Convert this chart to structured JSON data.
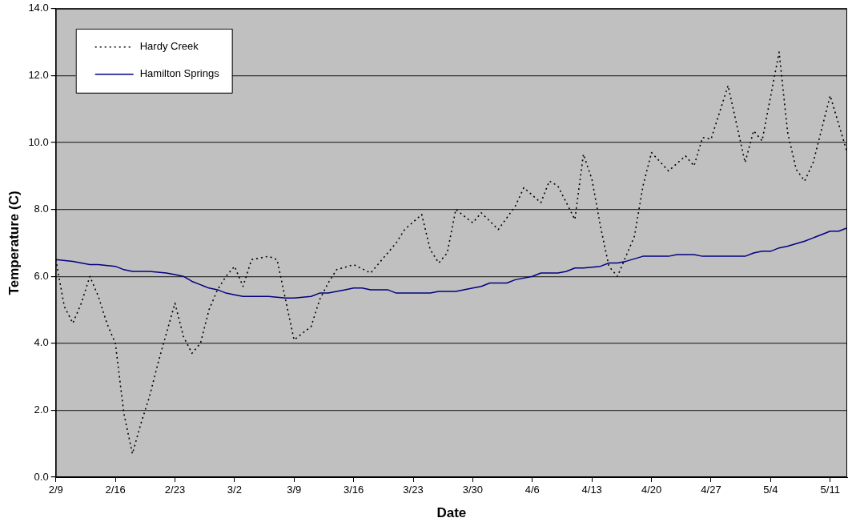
{
  "chart_data": {
    "type": "line",
    "xlabel": "Date",
    "ylabel": "Temperature (C)",
    "xlim": [
      "--02-09",
      "--05-13"
    ],
    "xticks": [
      {
        "value": "--02-09",
        "label": "2/9"
      },
      {
        "value": "--02-16",
        "label": "2/16"
      },
      {
        "value": "--02-23",
        "label": "2/23"
      },
      {
        "value": "--03-02",
        "label": "3/2"
      },
      {
        "value": "--03-09",
        "label": "3/9"
      },
      {
        "value": "--03-16",
        "label": "3/16"
      },
      {
        "value": "--03-23",
        "label": "3/23"
      },
      {
        "value": "--03-30",
        "label": "3/30"
      },
      {
        "value": "--04-06",
        "label": "4/6"
      },
      {
        "value": "--04-13",
        "label": "4/13"
      },
      {
        "value": "--04-20",
        "label": "4/20"
      },
      {
        "value": "--04-27",
        "label": "4/27"
      },
      {
        "value": "--05-04",
        "label": "5/4"
      },
      {
        "value": "--05-11",
        "label": "5/11"
      }
    ],
    "ylim": [
      0,
      14
    ],
    "yticks": [
      {
        "value": 0,
        "label": "0.0"
      },
      {
        "value": 2,
        "label": "2.0"
      },
      {
        "value": 4,
        "label": "4.0"
      },
      {
        "value": 6,
        "label": "6.0"
      },
      {
        "value": 8,
        "label": "8.0"
      },
      {
        "value": 10,
        "label": "10.0"
      },
      {
        "value": 12,
        "label": "12.0"
      },
      {
        "value": 14,
        "label": "14.0"
      }
    ],
    "grid": "y",
    "legend": "top left",
    "marker": "none",
    "series": [
      {
        "name": "Hardy Creek",
        "color": "#000000",
        "line_style": "dotted",
        "x": [
          "--02-09",
          "--02-10",
          "--02-11",
          "--02-12",
          "--02-13",
          "--02-14",
          "--02-15",
          "--02-16",
          "--02-17",
          "--02-18",
          "--02-19",
          "--02-20",
          "--02-21",
          "--02-22",
          "--02-23",
          "--02-24",
          "--02-25",
          "--02-26",
          "--02-27",
          "--02-28",
          "--03-01",
          "--03-02",
          "--03-03",
          "--03-04",
          "--03-05",
          "--03-06",
          "--03-07",
          "--03-08",
          "--03-09",
          "--03-10",
          "--03-11",
          "--03-12",
          "--03-13",
          "--03-14",
          "--03-16",
          "--03-18",
          "--03-19",
          "--03-21",
          "--03-22",
          "--03-24",
          "--03-25",
          "--03-26",
          "--03-27",
          "--03-28",
          "--03-30",
          "--03-31",
          "--04-02",
          "--04-04",
          "--04-05",
          "--04-07",
          "--04-08",
          "--04-09",
          "--04-11",
          "--04-12",
          "--04-13",
          "--04-14",
          "--04-15",
          "--04-16",
          "--04-18",
          "--04-19",
          "--04-20",
          "--04-22",
          "--04-24",
          "--04-25",
          "--04-26",
          "--04-27",
          "--04-29",
          "--05-01",
          "--05-02",
          "--05-03",
          "--05-05",
          "--05-06",
          "--05-07",
          "--05-08",
          "--05-09",
          "--05-11",
          "--05-13"
        ],
        "values": [
          6.5,
          5.1,
          4.6,
          5.2,
          6.0,
          5.4,
          4.6,
          4.0,
          1.9,
          0.7,
          1.6,
          2.4,
          3.4,
          4.3,
          5.2,
          4.2,
          3.7,
          4.0,
          5.0,
          5.6,
          6.0,
          6.3,
          5.7,
          6.5,
          6.55,
          6.6,
          6.5,
          5.3,
          4.1,
          4.3,
          4.5,
          5.3,
          5.8,
          6.2,
          6.35,
          6.1,
          6.4,
          7.0,
          7.4,
          7.85,
          6.8,
          6.4,
          6.7,
          8.0,
          7.6,
          7.9,
          7.4,
          8.1,
          8.65,
          8.2,
          8.85,
          8.7,
          7.7,
          9.65,
          8.9,
          7.5,
          6.3,
          6.0,
          7.2,
          8.7,
          9.7,
          9.15,
          9.6,
          9.3,
          10.15,
          10.1,
          11.7,
          9.4,
          10.35,
          10.05,
          12.7,
          10.3,
          9.2,
          8.85,
          9.4,
          11.4,
          9.7
        ]
      },
      {
        "name": "Hamilton Springs",
        "color": "#000080",
        "line_style": "solid",
        "x": [
          "--02-09",
          "--02-11",
          "--02-12",
          "--02-13",
          "--02-14",
          "--02-16",
          "--02-17",
          "--02-18",
          "--02-20",
          "--02-22",
          "--02-23",
          "--02-24",
          "--02-25",
          "--02-26",
          "--02-27",
          "--02-28",
          "--03-01",
          "--03-02",
          "--03-03",
          "--03-06",
          "--03-08",
          "--03-09",
          "--03-11",
          "--03-12",
          "--03-13",
          "--03-15",
          "--03-16",
          "--03-17",
          "--03-18",
          "--03-20",
          "--03-21",
          "--03-22",
          "--03-23",
          "--03-25",
          "--03-26",
          "--03-28",
          "--03-30",
          "--03-31",
          "--04-01",
          "--04-03",
          "--04-04",
          "--04-06",
          "--04-07",
          "--04-09",
          "--04-10",
          "--04-11",
          "--04-12",
          "--04-14",
          "--04-15",
          "--04-16",
          "--04-17",
          "--04-19",
          "--04-22",
          "--04-23",
          "--04-25",
          "--04-26",
          "--04-30",
          "--05-01",
          "--05-02",
          "--05-03",
          "--05-04",
          "--05-05",
          "--05-06",
          "--05-08",
          "--05-09",
          "--05-10",
          "--05-11",
          "--05-12",
          "--05-13"
        ],
        "values": [
          6.5,
          6.45,
          6.4,
          6.35,
          6.35,
          6.3,
          6.2,
          6.15,
          6.15,
          6.1,
          6.05,
          6.0,
          5.85,
          5.75,
          5.65,
          5.6,
          5.5,
          5.45,
          5.4,
          5.4,
          5.35,
          5.35,
          5.4,
          5.5,
          5.5,
          5.6,
          5.65,
          5.65,
          5.6,
          5.6,
          5.5,
          5.5,
          5.5,
          5.5,
          5.55,
          5.55,
          5.65,
          5.7,
          5.8,
          5.8,
          5.9,
          6.0,
          6.1,
          6.1,
          6.15,
          6.25,
          6.25,
          6.3,
          6.4,
          6.4,
          6.45,
          6.6,
          6.6,
          6.65,
          6.65,
          6.6,
          6.6,
          6.6,
          6.7,
          6.75,
          6.75,
          6.85,
          6.9,
          7.05,
          7.15,
          7.25,
          7.35,
          7.35,
          7.45
        ]
      }
    ]
  }
}
